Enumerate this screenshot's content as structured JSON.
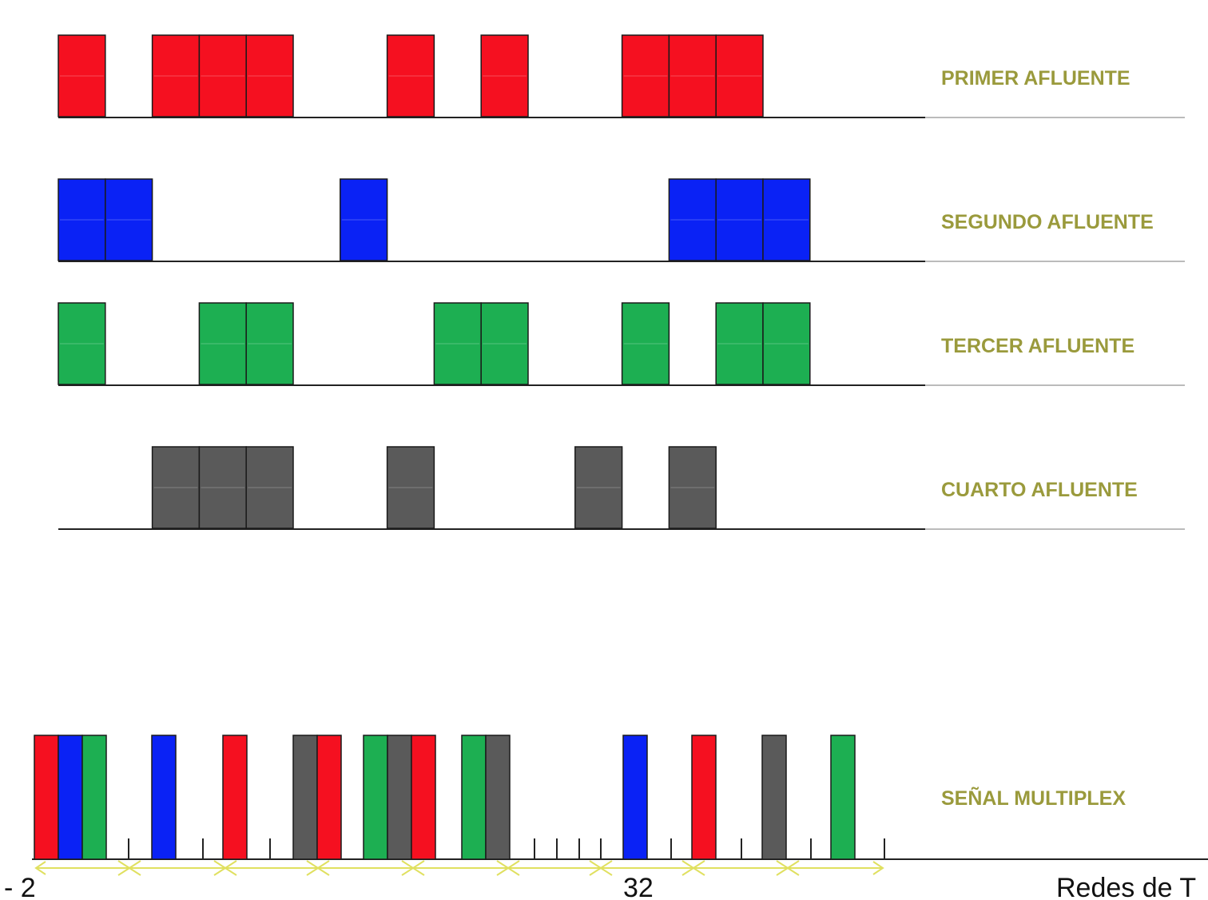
{
  "diagram": {
    "colors": {
      "label": "#9a9a3c",
      "baseline": "#222222",
      "baseline_right": "#bbbbbb",
      "outline": "#1a1a1a",
      "frame_marker": "#e0e060"
    },
    "tributaries": [
      {
        "label": "PRIMER AFLUENTE",
        "color": "#f51020",
        "slots": [
          0,
          2,
          3,
          4,
          7,
          9,
          12,
          13,
          14
        ]
      },
      {
        "label": "SEGUNDO AFLUENTE",
        "color": "#0a22f5",
        "slots": [
          0,
          1,
          6,
          13,
          14,
          15
        ]
      },
      {
        "label": "TERCER AFLUENTE",
        "color": "#1daf52",
        "slots": [
          0,
          3,
          4,
          8,
          9,
          12,
          14,
          15
        ]
      },
      {
        "label": "CUARTO AFLUENTE",
        "color": "#5a5a5a",
        "slots": [
          2,
          3,
          4,
          7,
          11,
          13
        ]
      }
    ],
    "multiplex": {
      "label": "SEÑAL MULTIPLEX",
      "groups": [
        [
          "red",
          "blue",
          "green"
        ],
        [
          "blue"
        ],
        [
          "red"
        ],
        [
          "gray",
          "red"
        ],
        [
          "green",
          "gray",
          "red"
        ],
        [
          "green",
          "gray"
        ],
        [
          "blue"
        ],
        [
          "red"
        ],
        [
          "gray"
        ],
        [
          "green"
        ]
      ]
    },
    "axis": {
      "left_text": "- 2",
      "mid_text": "32",
      "right_text": "Redes de T"
    }
  }
}
